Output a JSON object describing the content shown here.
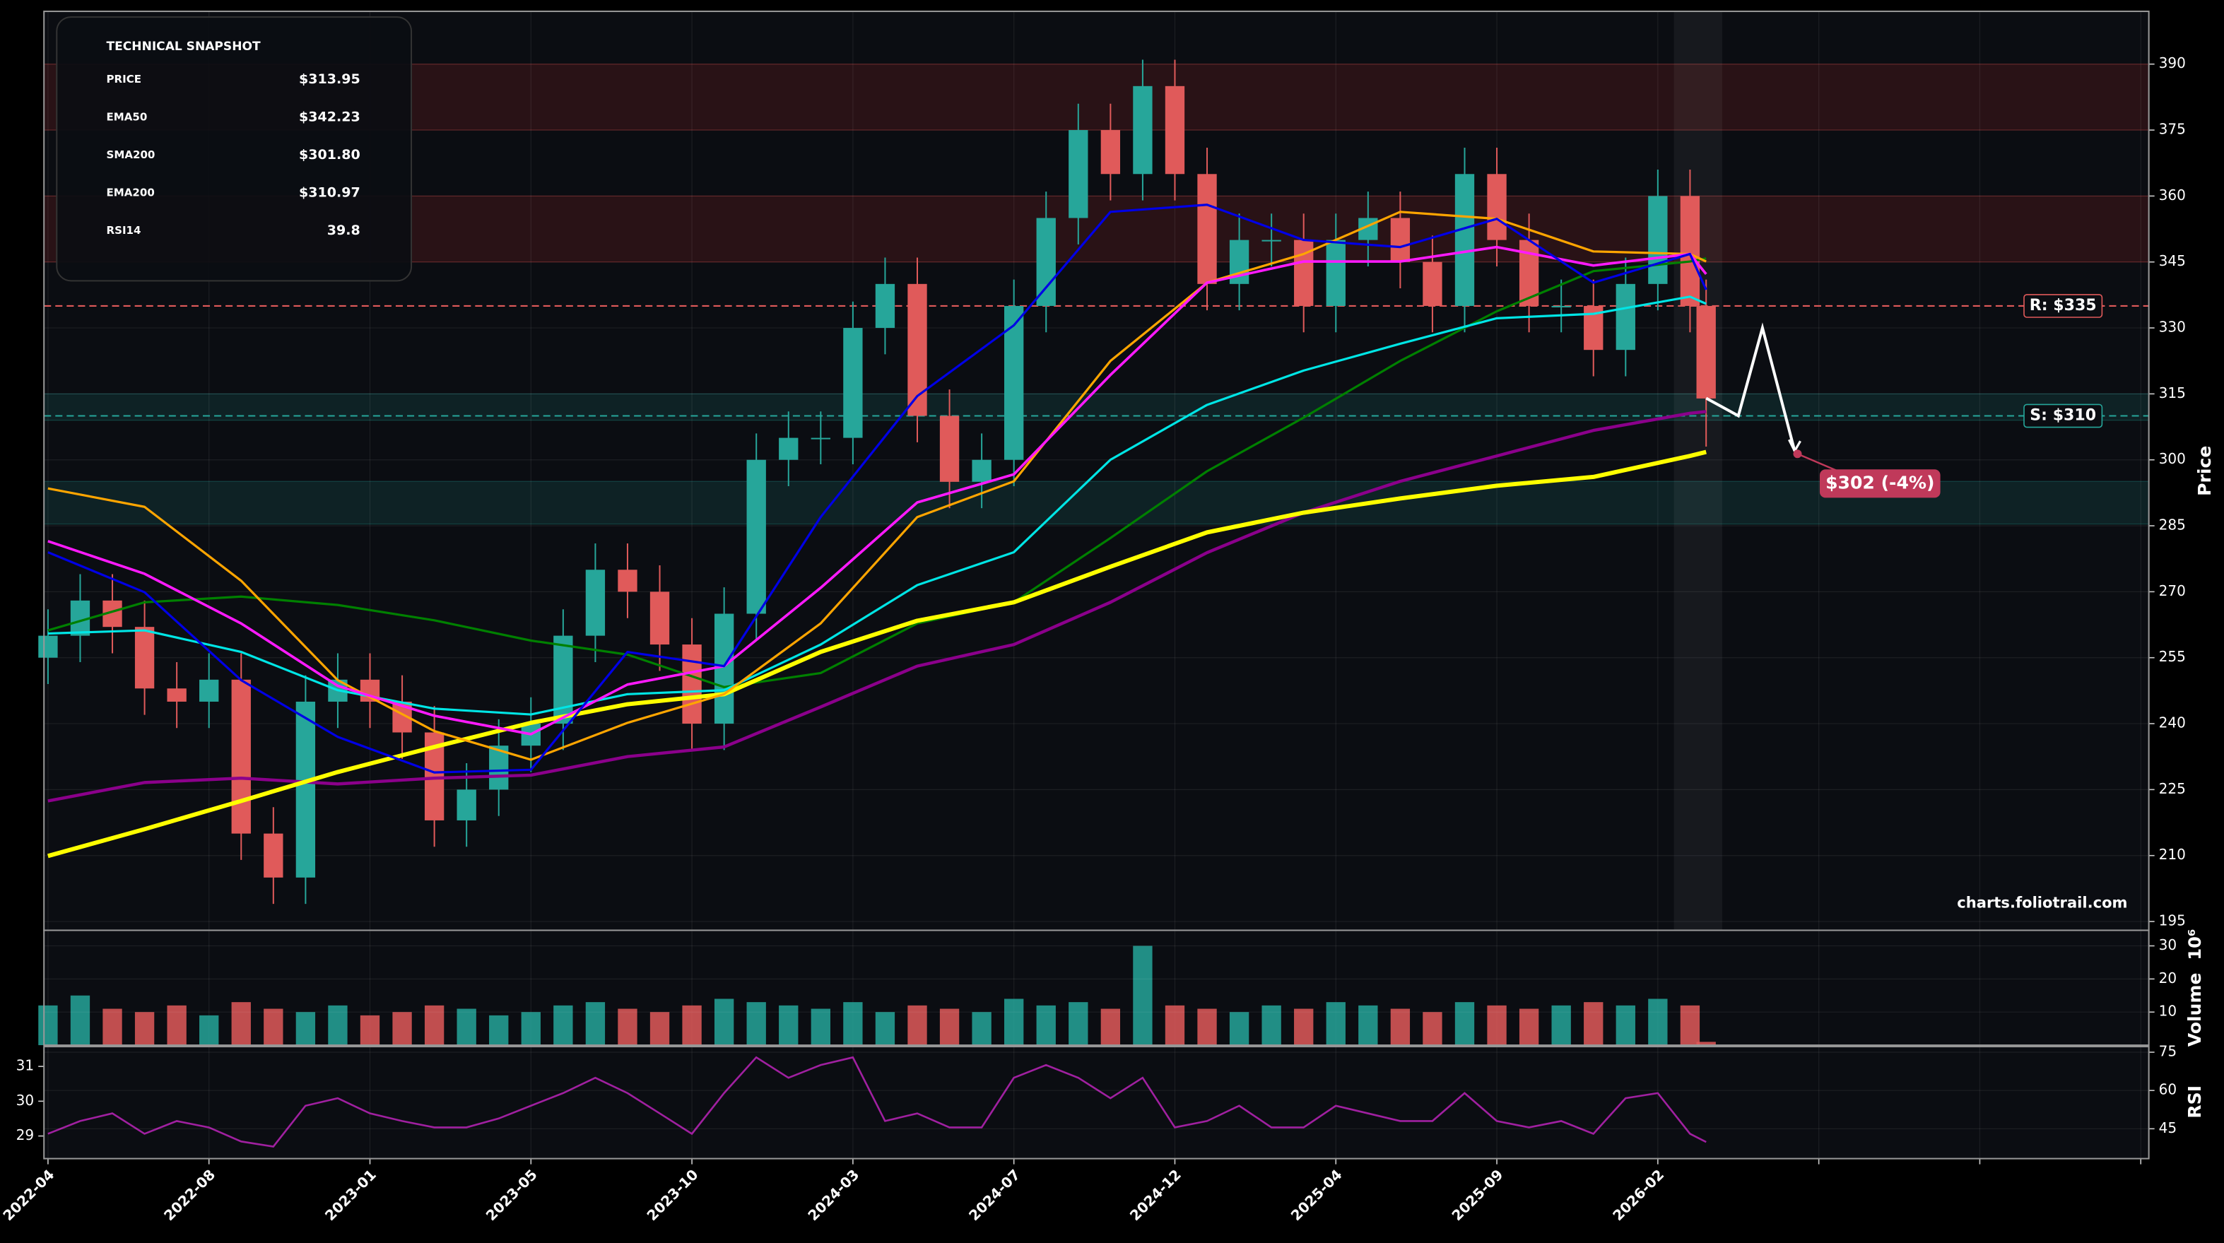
{
  "chart_data": {
    "type": "candlestick",
    "x": [
      0,
      4,
      8,
      12,
      16,
      20,
      24,
      28,
      32,
      36,
      40,
      44,
      48,
      52,
      56,
      60,
      64,
      68,
      72,
      76,
      80,
      84,
      88,
      92,
      96,
      100,
      104,
      108,
      112,
      116,
      120,
      124,
      128,
      132,
      136,
      140,
      144,
      148,
      152,
      156,
      160,
      164,
      168,
      172,
      176,
      180,
      184,
      188,
      192,
      196,
      200,
      204,
      206
    ],
    "open": [
      255,
      260,
      268,
      262,
      248,
      245,
      250,
      215,
      205,
      245,
      250,
      245,
      238,
      218,
      225,
      235,
      240,
      260,
      275,
      270,
      258,
      240,
      265,
      300,
      305,
      305,
      330,
      340,
      310,
      295,
      300,
      335,
      355,
      375,
      365,
      385,
      365,
      340,
      350,
      350,
      335,
      350,
      355,
      345,
      335,
      365,
      350,
      335,
      335,
      325,
      340,
      360,
      335
    ],
    "high": [
      266,
      274,
      274,
      268,
      254,
      256,
      256,
      221,
      251,
      256,
      256,
      251,
      244,
      231,
      241,
      246,
      266,
      281,
      281,
      276,
      264,
      271,
      306,
      311,
      311,
      336,
      346,
      346,
      316,
      306,
      341,
      361,
      381,
      381,
      391,
      391,
      371,
      356,
      356,
      356,
      356,
      361,
      361,
      351,
      371,
      371,
      356,
      341,
      341,
      346,
      366,
      366,
      341
    ],
    "low": [
      249,
      254,
      256,
      242,
      239,
      239,
      209,
      199,
      199,
      239,
      239,
      232,
      212,
      212,
      219,
      229,
      234,
      254,
      264,
      252,
      234,
      234,
      259,
      294,
      299,
      299,
      324,
      304,
      289,
      289,
      294,
      329,
      349,
      359,
      359,
      359,
      334,
      334,
      344,
      329,
      329,
      344,
      339,
      329,
      329,
      344,
      329,
      329,
      319,
      319,
      334,
      329,
      303
    ],
    "close": [
      260,
      268,
      262,
      248,
      245,
      250,
      215,
      205,
      245,
      250,
      245,
      238,
      218,
      225,
      235,
      240,
      260,
      275,
      270,
      258,
      240,
      265,
      300,
      305,
      305,
      330,
      340,
      310,
      295,
      300,
      335,
      355,
      375,
      365,
      385,
      365,
      340,
      350,
      350,
      335,
      350,
      355,
      345,
      335,
      365,
      350,
      335,
      335,
      325,
      340,
      360,
      335,
      313.95
    ],
    "up_color": "#26a69a",
    "down_color": "#e05a5a",
    "xlim": [
      -0.5,
      261
    ],
    "xticks": [
      {
        "value": 0,
        "label": "2022-04"
      },
      {
        "value": 20,
        "label": "2022-08"
      },
      {
        "value": 40,
        "label": "2023-01"
      },
      {
        "value": 60,
        "label": "2023-05"
      },
      {
        "value": 80,
        "label": "2023-10"
      },
      {
        "value": 100,
        "label": "2024-03"
      },
      {
        "value": 120,
        "label": "2024-07"
      },
      {
        "value": 140,
        "label": "2024-12"
      },
      {
        "value": 160,
        "label": "2025-04"
      },
      {
        "value": 180,
        "label": "2025-09"
      },
      {
        "value": 200,
        "label": "2026-02"
      },
      {
        "value": 220,
        "label": null
      },
      {
        "value": 240,
        "label": null
      },
      {
        "value": 260,
        "label": null
      }
    ],
    "ylim": [
      193,
      402
    ],
    "yticks": [
      195,
      210,
      225,
      240,
      255,
      270,
      285,
      300,
      315,
      330,
      345,
      360,
      375,
      390
    ],
    "ylabel": "Price",
    "grid": true,
    "lines": [
      {
        "color": "#008000",
        "width": 1.6,
        "x": [
          0,
          12,
          24,
          36,
          48,
          60,
          72,
          84,
          96,
          108,
          120,
          132,
          144,
          156,
          168,
          180,
          192,
          204,
          206
        ],
        "values": [
          261.2,
          267.6,
          268.9,
          267,
          263.5,
          258.9,
          255.7,
          248.3,
          251.5,
          262.8,
          267.6,
          282.2,
          297.4,
          309.6,
          322.5,
          333.8,
          342.9,
          345.1,
          345.8
        ]
      },
      {
        "name": "EMA200",
        "color": "#8b008b",
        "width": 2.2,
        "x": [
          0,
          12,
          24,
          36,
          48,
          60,
          72,
          84,
          96,
          108,
          120,
          132,
          144,
          156,
          168,
          180,
          192,
          204,
          206
        ],
        "values": [
          222.4,
          226.6,
          227.6,
          226.3,
          227.6,
          228.3,
          232.5,
          234.7,
          243.8,
          253.1,
          258,
          267.6,
          278.9,
          288,
          295.1,
          300.9,
          306.7,
          310.6,
          310.97
        ]
      },
      {
        "name": "SMA200",
        "color": "#ffff00",
        "width": 3,
        "x": [
          0,
          12,
          24,
          36,
          48,
          60,
          72,
          84,
          96,
          108,
          120,
          132,
          144,
          156,
          168,
          180,
          192,
          204,
          206
        ],
        "values": [
          209.9,
          216,
          222.4,
          229,
          234.7,
          240.2,
          244.4,
          246.7,
          256.3,
          263.4,
          267.6,
          275.7,
          283.5,
          288,
          291.2,
          294.1,
          296.1,
          300.9,
          301.8
        ]
      },
      {
        "color": "#00e5e5",
        "width": 1.6,
        "x": [
          0,
          12,
          24,
          36,
          48,
          60,
          72,
          84,
          96,
          108,
          120,
          132,
          144,
          156,
          168,
          180,
          192,
          204,
          206
        ],
        "values": [
          260.5,
          261.2,
          256.3,
          247.6,
          243.4,
          242.1,
          246.7,
          247.6,
          258,
          271.5,
          279,
          300,
          312.5,
          320.3,
          326.4,
          332.2,
          333.2,
          337.1,
          335.5
        ]
      },
      {
        "color": "#ffa500",
        "width": 1.6,
        "x": [
          0,
          12,
          24,
          36,
          48,
          60,
          72,
          84,
          96,
          108,
          120,
          132,
          144,
          156,
          168,
          180,
          192,
          204,
          206
        ],
        "values": [
          293.5,
          289.3,
          272.5,
          249.9,
          238.3,
          231.8,
          240.2,
          246.7,
          262.8,
          287,
          295.1,
          322.5,
          340.3,
          346.8,
          356.4,
          354.8,
          347.4,
          346.8,
          345.1
        ]
      },
      {
        "name": "EMA50",
        "color": "#ff1aff",
        "width": 1.8,
        "x": [
          0,
          12,
          24,
          36,
          48,
          60,
          72,
          84,
          96,
          108,
          120,
          132,
          144,
          156,
          168,
          180,
          192,
          204,
          206
        ],
        "values": [
          281.5,
          274.1,
          262.8,
          248.6,
          241.8,
          237.6,
          248.9,
          253.1,
          270.9,
          290.3,
          296.7,
          319.3,
          340.3,
          345.1,
          345.1,
          348.4,
          344.2,
          346.8,
          342.23
        ]
      },
      {
        "color": "#0000e6",
        "width": 1.6,
        "x": [
          0,
          12,
          24,
          36,
          48,
          60,
          72,
          84,
          96,
          108,
          120,
          132,
          144,
          156,
          168,
          180,
          192,
          204,
          206
        ],
        "values": [
          279,
          269.9,
          249.9,
          237,
          228.9,
          229.5,
          256.3,
          253.1,
          287,
          314.5,
          330.6,
          356.4,
          358,
          350,
          348.4,
          354.8,
          340.3,
          346.8,
          338.7
        ]
      }
    ],
    "zones": [
      {
        "from": 375,
        "to": 390,
        "color": "#e03030"
      },
      {
        "from": 345,
        "to": 360,
        "color": "#e03030"
      },
      {
        "from": 309,
        "to": 315,
        "color": "#26a69a"
      },
      {
        "from": 285.4,
        "to": 295.1,
        "color": "#26a69a"
      }
    ],
    "levels": [
      {
        "value": 335,
        "label": "R: $335",
        "color": "#e05a5a"
      },
      {
        "value": 310,
        "label": "S: $310",
        "color": "#26a69a"
      }
    ],
    "highlight": [
      202,
      208
    ],
    "forecast": {
      "x": [
        206,
        210,
        213,
        217
      ],
      "values": [
        314,
        310,
        330,
        302
      ],
      "color": "#ffffff",
      "label": "$302 (-4%)",
      "label_color": "#c0395a"
    },
    "watermark": "charts.foliotrail.com",
    "volume": {
      "values": [
        12,
        15,
        11,
        10,
        12,
        9,
        13,
        11,
        10,
        12,
        9,
        10,
        12,
        11,
        9,
        10,
        12,
        13,
        11,
        10,
        12,
        14,
        13,
        12,
        11,
        13,
        10,
        12,
        11,
        10,
        14,
        12,
        13,
        11,
        30,
        12,
        11,
        10,
        12,
        11,
        13,
        12,
        11,
        10,
        13,
        12,
        11,
        12,
        13,
        12,
        14,
        12,
        1
      ],
      "ylim": [
        0,
        34.7
      ],
      "yticks": [
        10,
        20,
        30
      ],
      "ylabel": "Volume",
      "offset": "10⁶"
    },
    "rsi": {
      "values": [
        43,
        48,
        51,
        43,
        48,
        45.5,
        40,
        38,
        54,
        57,
        51,
        48,
        45.5,
        45.5,
        49,
        54,
        59,
        65,
        59,
        51,
        43,
        59,
        73,
        65,
        70,
        73,
        48,
        51,
        45.5,
        45.5,
        65,
        70,
        65,
        57,
        65,
        45.5,
        48,
        54,
        45.5,
        45.5,
        54,
        51,
        48,
        48,
        59,
        48,
        45.5,
        48,
        43,
        57,
        59,
        43,
        39.8
      ],
      "color": "#a020a0",
      "ylim": [
        28.35,
        31.57
      ],
      "yticks": [
        29,
        30,
        31
      ],
      "y2lim": [
        33.3,
        77.2
      ],
      "y2ticks": [
        45,
        60,
        75
      ],
      "ylabel": "RSI"
    }
  },
  "snapshot": {
    "title": "TECHNICAL SNAPSHOT",
    "rows": [
      {
        "label": "PRICE",
        "value": "$313.95",
        "color": "#ffffff"
      },
      {
        "label": "EMA50",
        "value": "$342.23",
        "color": "#ff1aff"
      },
      {
        "label": "SMA200",
        "value": "$301.80",
        "color": "#ffff00"
      },
      {
        "label": "EMA200",
        "value": "$310.97",
        "color": "#c020c0"
      },
      {
        "label": "RSI14",
        "value": "39.8",
        "color": "#a020a0"
      }
    ]
  }
}
